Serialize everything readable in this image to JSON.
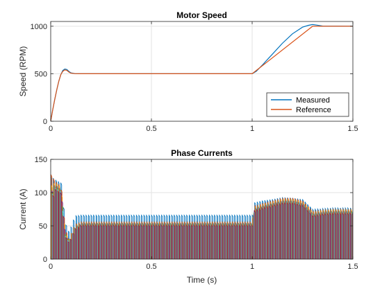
{
  "chart_data": [
    {
      "type": "line",
      "title": "Motor Speed",
      "xlabel": "",
      "ylabel": "Speed (RPM)",
      "xlim": [
        0,
        1.5
      ],
      "ylim": [
        0,
        1050
      ],
      "xticks": [
        0,
        0.5,
        1,
        1.5
      ],
      "xtick_labels": [
        "0",
        "0.5",
        "1",
        "1.5"
      ],
      "yticks": [
        0,
        500,
        1000
      ],
      "ytick_labels": [
        "0",
        "500",
        "1000"
      ],
      "grid": true,
      "legend": "bottom-right",
      "series": [
        {
          "name": "Measured",
          "color": "#0072BD",
          "x": [
            0,
            0.01,
            0.02,
            0.03,
            0.04,
            0.05,
            0.06,
            0.07,
            0.08,
            0.09,
            0.1,
            0.12,
            0.15,
            1.0,
            1.02,
            1.05,
            1.1,
            1.15,
            1.2,
            1.25,
            1.28,
            1.3,
            1.32,
            1.35,
            1.5
          ],
          "y": [
            0,
            120,
            230,
            330,
            420,
            490,
            535,
            550,
            545,
            525,
            510,
            502,
            500,
            500,
            525,
            590,
            705,
            820,
            920,
            990,
            1010,
            1018,
            1012,
            1002,
            1000
          ]
        },
        {
          "name": "Reference",
          "color": "#D95319",
          "x": [
            0,
            0.01,
            0.02,
            0.03,
            0.04,
            0.05,
            0.06,
            0.07,
            0.08,
            0.09,
            0.1,
            0.12,
            0.15,
            1.0,
            1.3,
            1.5
          ],
          "y": [
            0,
            120,
            230,
            330,
            420,
            490,
            525,
            540,
            535,
            518,
            506,
            501,
            500,
            500,
            1000,
            1000
          ]
        }
      ]
    },
    {
      "type": "line",
      "title": "Phase Currents",
      "xlabel": "Time (s)",
      "ylabel": "Current (A)",
      "xlim": [
        0,
        1.5
      ],
      "ylim": [
        0,
        150
      ],
      "xticks": [
        0,
        0.5,
        1,
        1.5
      ],
      "xtick_labels": [
        "0",
        "0.5",
        "1",
        "1.5"
      ],
      "yticks": [
        0,
        50,
        100,
        150
      ],
      "ytick_labels": [
        "0",
        "50",
        "100",
        "150"
      ],
      "grid": true,
      "series": [
        {
          "color": "#0072BD",
          "x": [
            0,
            0.02,
            0.05,
            0.07,
            0.09,
            0.12,
            0.15,
            0.5,
            1.0,
            1.01,
            1.05,
            1.1,
            1.15,
            1.2,
            1.25,
            1.3,
            1.35,
            1.4,
            1.5
          ],
          "y": [
            125,
            120,
            115,
            55,
            40,
            65,
            66,
            66,
            66,
            85,
            88,
            90,
            93,
            92,
            90,
            75,
            76,
            77,
            77
          ]
        },
        {
          "color": "#D95319",
          "x": [
            0,
            0.02,
            0.05,
            0.07,
            0.09,
            0.12,
            0.15,
            0.5,
            1.0,
            1.01,
            1.05,
            1.1,
            1.15,
            1.2,
            1.25,
            1.3,
            1.35,
            1.4,
            1.5
          ],
          "y": [
            128,
            118,
            110,
            45,
            30,
            52,
            56,
            56,
            56,
            80,
            84,
            88,
            92,
            92,
            88,
            72,
            74,
            75,
            75
          ]
        },
        {
          "color": "#EDB120",
          "x": [
            0,
            0.02,
            0.05,
            0.07,
            0.09,
            0.12,
            0.15,
            0.5,
            1.0,
            1.01,
            1.05,
            1.1,
            1.15,
            1.2,
            1.25,
            1.3,
            1.35,
            1.4,
            1.5
          ],
          "y": [
            110,
            115,
            108,
            40,
            28,
            50,
            55,
            55,
            55,
            78,
            82,
            86,
            90,
            90,
            86,
            70,
            73,
            74,
            74
          ]
        },
        {
          "color": "#7E2F8E",
          "x": [
            0,
            0.02,
            0.05,
            0.07,
            0.09,
            0.12,
            0.15,
            0.5,
            1.0,
            1.01,
            1.05,
            1.1,
            1.15,
            1.2,
            1.25,
            1.3,
            1.35,
            1.4,
            1.5
          ],
          "y": [
            100,
            112,
            105,
            38,
            26,
            48,
            54,
            54,
            54,
            76,
            80,
            84,
            88,
            88,
            84,
            68,
            71,
            72,
            72
          ]
        },
        {
          "color": "#77AC30",
          "x": [
            0,
            0.02,
            0.05,
            0.07,
            0.09,
            0.12,
            0.15,
            0.5,
            1.0,
            1.01,
            1.05,
            1.1,
            1.15,
            1.2,
            1.25,
            1.3,
            1.35,
            1.4,
            1.5
          ],
          "y": [
            95,
            110,
            104,
            36,
            27,
            47,
            53,
            53,
            53,
            75,
            79,
            83,
            87,
            87,
            83,
            67,
            70,
            71,
            71
          ]
        },
        {
          "color": "#4DBEEE",
          "x": [
            0,
            0.02,
            0.05,
            0.07,
            0.09,
            0.12,
            0.15,
            0.5,
            1.0,
            1.01,
            1.05,
            1.1,
            1.15,
            1.2,
            1.25,
            1.3,
            1.35,
            1.4,
            1.5
          ],
          "y": [
            90,
            108,
            102,
            35,
            25,
            46,
            52,
            52,
            52,
            74,
            78,
            82,
            86,
            86,
            82,
            66,
            69,
            70,
            70
          ]
        },
        {
          "color": "#A2142F",
          "x": [
            0,
            0.02,
            0.05,
            0.07,
            0.09,
            0.12,
            0.15,
            0.5,
            1.0,
            1.01,
            1.05,
            1.1,
            1.15,
            1.2,
            1.25,
            1.3,
            1.35,
            1.4,
            1.5
          ],
          "y": [
            85,
            106,
            100,
            34,
            24,
            45,
            51,
            51,
            51,
            73,
            77,
            81,
            85,
            85,
            81,
            65,
            68,
            69,
            69
          ]
        }
      ]
    }
  ]
}
